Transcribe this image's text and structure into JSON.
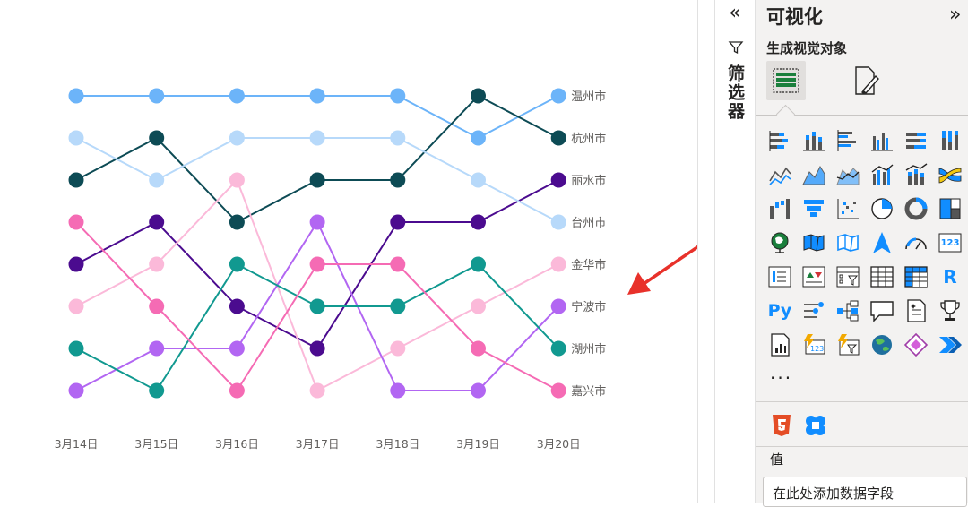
{
  "chart_data": {
    "type": "line",
    "categories": [
      "3月14日",
      "3月15日",
      "3月16日",
      "3月17日",
      "3月18日",
      "3月19日",
      "3月20日"
    ],
    "series": [
      {
        "name": "温州市",
        "color": "#6cb4f9",
        "ranks": [
          1,
          1,
          1,
          1,
          1,
          2,
          1
        ]
      },
      {
        "name": "杭州市",
        "color": "#0d4b55",
        "ranks": [
          3,
          2,
          4,
          3,
          3,
          1,
          2
        ]
      },
      {
        "name": "丽水市",
        "color": "#4b0b8f",
        "ranks": [
          5,
          4,
          6,
          7,
          4,
          4,
          3
        ]
      },
      {
        "name": "台州市",
        "color": "#b7d9fa",
        "ranks": [
          2,
          3,
          2,
          2,
          2,
          3,
          4
        ]
      },
      {
        "name": "金华市",
        "color": "#fbb9d9",
        "ranks": [
          6,
          5,
          3,
          8,
          7,
          6,
          5
        ]
      },
      {
        "name": "宁波市",
        "color": "#b266f2",
        "ranks": [
          8,
          7,
          7,
          4,
          8,
          8,
          6
        ]
      },
      {
        "name": "湖州市",
        "color": "#119990",
        "ranks": [
          7,
          8,
          5,
          6,
          6,
          5,
          7
        ]
      },
      {
        "name": "嘉兴市",
        "color": "#f56bb4",
        "ranks": [
          4,
          6,
          8,
          5,
          5,
          7,
          8
        ]
      }
    ],
    "ylim": [
      1,
      8
    ]
  },
  "filters": {
    "label": "筛选器"
  },
  "viz": {
    "title": "可视化",
    "build_label": "生成视觉对象",
    "more": "···",
    "values_label": "值",
    "add_field": "在此处添加数据字段",
    "icons_text": {
      "r": "R",
      "py": "Py",
      "num": "123"
    }
  },
  "colors": {
    "accent": "#118dff",
    "arrow": "#e8312a",
    "pane": "#f3f2f1"
  }
}
